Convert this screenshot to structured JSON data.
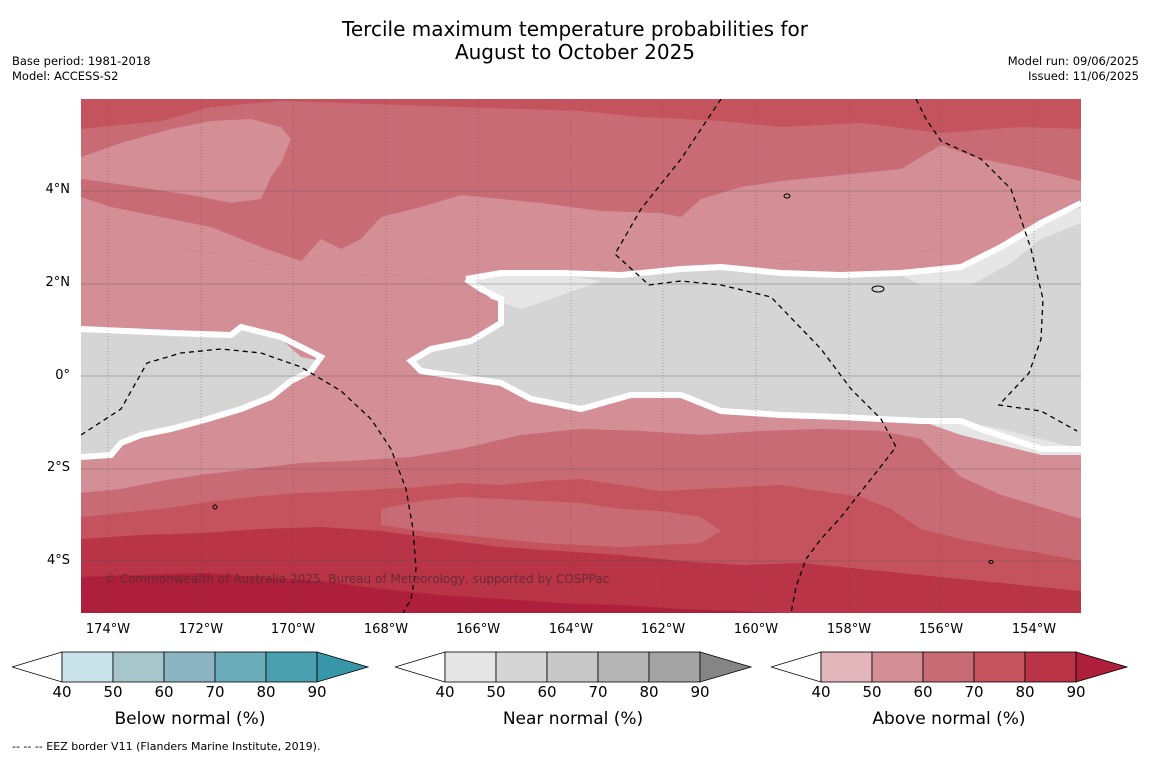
{
  "title_line1": "Tercile maximum temperature probabilities for",
  "title_line2": "August to October 2025",
  "meta_left": {
    "base_period": "Base period: 1981-2018",
    "model": "Model: ACCESS-S2"
  },
  "meta_right": {
    "model_run": "Model run: 09/06/2025",
    "issued": "Issued: 11/06/2025"
  },
  "copyright": "© Commonwealth of Australia 2025, Bureau of Meteorology, supported by COSPPac",
  "footnote": "--  --  -- EEZ border V11 (Flanders Marine Institute, 2019).",
  "axes": {
    "lon_labels": [
      "174°W",
      "172°W",
      "170°W",
      "168°W",
      "166°W",
      "164°W",
      "162°W",
      "160°W",
      "158°W",
      "156°W",
      "154°W"
    ],
    "lat_labels": [
      "4°N",
      "2°N",
      "0°",
      "2°S",
      "4°S"
    ]
  },
  "legends": [
    {
      "title": "Below normal (%)",
      "ticks": [
        "40",
        "50",
        "60",
        "70",
        "80",
        "90"
      ],
      "colors": [
        "#ffffff",
        "#c9e2e8",
        "#a6c6cb",
        "#8ab5c1",
        "#6aacb9",
        "#4aa0ae",
        "#3796a8"
      ]
    },
    {
      "title": "Near normal (%)",
      "ticks": [
        "40",
        "50",
        "60",
        "70",
        "80",
        "90"
      ],
      "colors": [
        "#ffffff",
        "#e6e6e6",
        "#d5d5d5",
        "#c8c8c8",
        "#b5b5b5",
        "#a3a3a3",
        "#858585"
      ]
    },
    {
      "title": "Above normal (%)",
      "ticks": [
        "40",
        "50",
        "60",
        "70",
        "80",
        "90"
      ],
      "colors": [
        "#ffffff",
        "#e3b6bb",
        "#d48e96",
        "#c96b75",
        "#c4535e",
        "#b93447",
        "#ad1f3a"
      ]
    }
  ]
}
